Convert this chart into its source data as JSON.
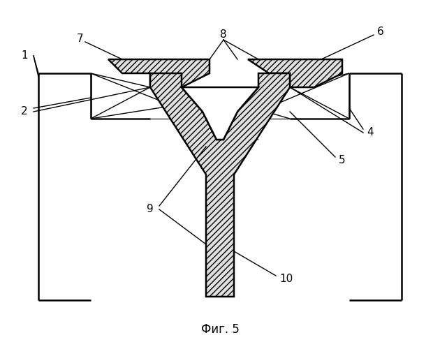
{
  "title": "Фиг. 5",
  "background": "#ffffff",
  "line_color": "#000000",
  "hatch": "////",
  "fc_hatch": "#e0e0e0",
  "lw_main": 1.8,
  "lw_thin": 1.0,
  "fontsize": 11
}
